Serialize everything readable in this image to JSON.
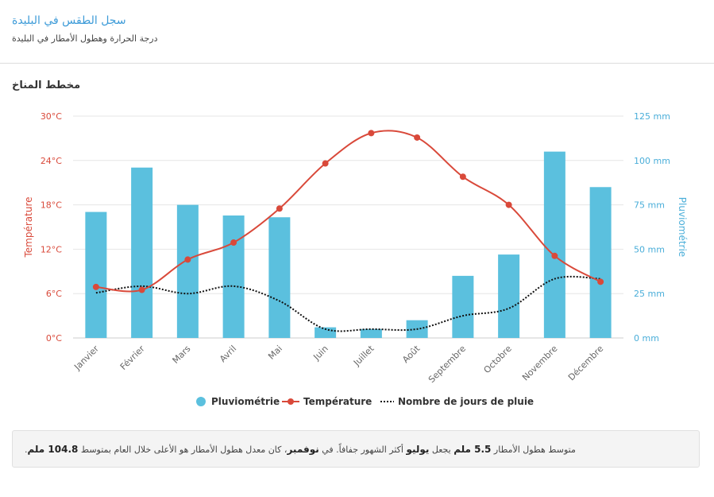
{
  "header": {
    "title": "سجل الطقس في البليدة",
    "subtitle": "درجة الحرارة وهطول الأمطار في البليدة"
  },
  "section_title": "مخطط المناخ",
  "chart_data": {
    "type": "bar",
    "categories": [
      "Janvier",
      "Février",
      "Mars",
      "Avril",
      "Mai",
      "Juin",
      "Juillet",
      "Août",
      "Septembre",
      "Octobre",
      "Novembre",
      "Décembre"
    ],
    "series": [
      {
        "name": "Pluviométrie",
        "type": "bar",
        "axis": "right",
        "color": "#5bc0de",
        "values": [
          71,
          96,
          75,
          69,
          68,
          6,
          5,
          10,
          35,
          47,
          105,
          85
        ]
      },
      {
        "name": "Température",
        "type": "line",
        "axis": "left",
        "color": "#d9493a",
        "values": [
          6.9,
          6.5,
          10.6,
          12.9,
          17.5,
          23.6,
          27.7,
          27.1,
          21.8,
          18.0,
          11.1,
          7.6
        ]
      },
      {
        "name": "Nombre de jours de pluie",
        "type": "line-dotted",
        "axis": "left",
        "color": "#111111",
        "values": [
          6.1,
          7.0,
          6.0,
          7.0,
          5.0,
          1.2,
          1.2,
          1.2,
          3.0,
          4.0,
          8.0,
          8.0
        ]
      }
    ],
    "y_left": {
      "label": "Température",
      "ticks": [
        "0°C",
        "6°C",
        "12°C",
        "18°C",
        "24°C",
        "30°C"
      ],
      "min": 0,
      "max": 30,
      "color": "#d9493a"
    },
    "y_right": {
      "label": "Pluviométrie",
      "ticks": [
        "0 mm",
        "25 mm",
        "50 mm",
        "75 mm",
        "100 mm",
        "125 mm"
      ],
      "min": 0,
      "max": 125,
      "color": "#4aaed9"
    },
    "grid": true,
    "legend_position": "bottom"
  },
  "footer": {
    "text_1": "متوسط هطول الأمطار ",
    "driest_value": "5.5 ملم",
    "text_2": " يجعل ",
    "driest_month": "يوليو",
    "text_3": " أكثر الشهور جفافاً. في ",
    "wettest_month": "نوفمبر",
    "text_4": "، كان معدل هطول الأمطار هو الأعلى خلال العام بمتوسط ",
    "wettest_value": "104.8 ملم",
    "text_5": "."
  }
}
